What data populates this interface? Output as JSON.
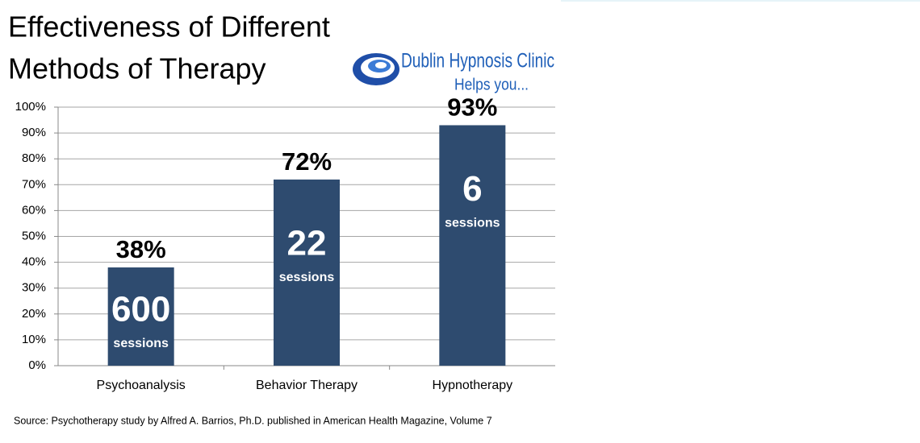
{
  "chart_data": {
    "type": "bar",
    "title": [
      "Effectiveness of Different",
      "Methods of Therapy"
    ],
    "logo": {
      "name": "Dublin Hypnosis Clinic",
      "tagline": "Helps you..."
    },
    "categories": [
      "Psychoanalysis",
      "Behavior Therapy",
      "Hypnotherapy"
    ],
    "values": [
      38,
      72,
      93
    ],
    "value_labels": [
      "38%",
      "72%",
      "93%"
    ],
    "bar_annotations": [
      [
        "600",
        "sessions"
      ],
      [
        "22",
        "sessions"
      ],
      [
        "6",
        "sessions"
      ]
    ],
    "color": "#2e4b6f",
    "ylim": [
      0,
      100
    ],
    "yticks": [
      {
        "value": 0,
        "label": "0%"
      },
      {
        "value": 10,
        "label": "10%"
      },
      {
        "value": 20,
        "label": "20%"
      },
      {
        "value": 30,
        "label": "30%"
      },
      {
        "value": 40,
        "label": "40%"
      },
      {
        "value": 50,
        "label": "50%"
      },
      {
        "value": 60,
        "label": "60%"
      },
      {
        "value": 70,
        "label": "70%"
      },
      {
        "value": 80,
        "label": "80%"
      },
      {
        "value": 90,
        "label": "90%"
      },
      {
        "value": 100,
        "label": "100%"
      }
    ],
    "grid": true,
    "source": "Source:  Psychotherapy study by Alfred A. Barrios, Ph.D. published in American Health Magazine, Volume 7"
  }
}
